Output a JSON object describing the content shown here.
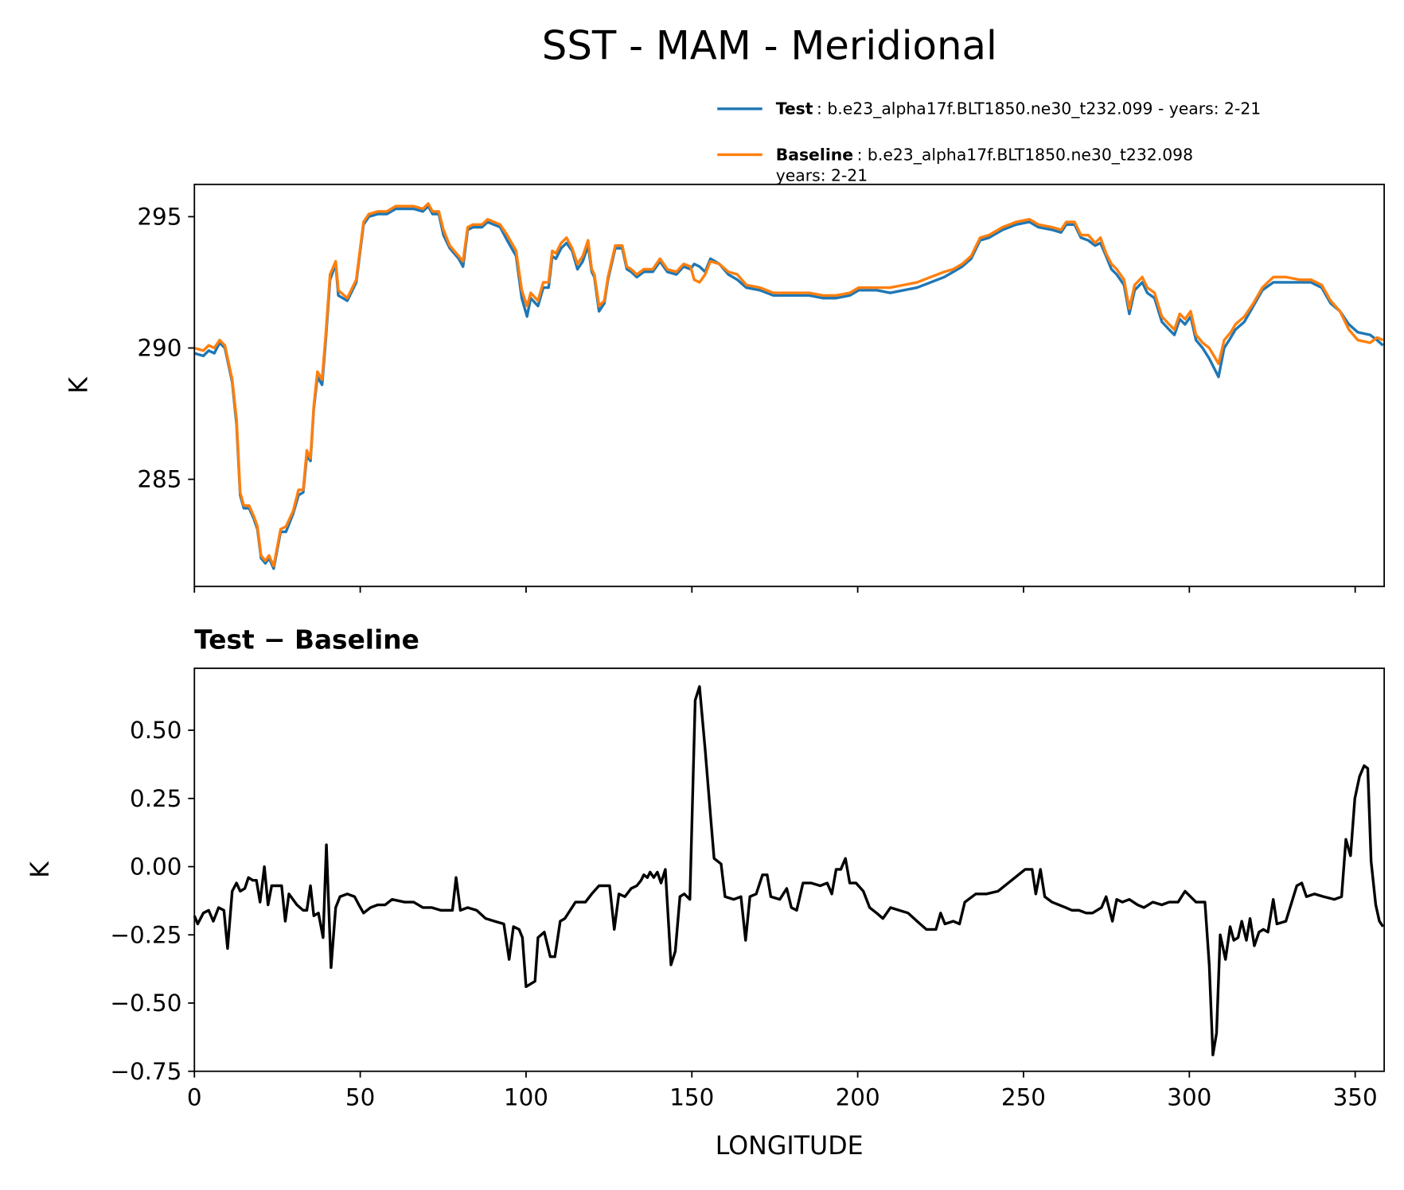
{
  "title": "SST - MAM - Meridional",
  "chart_data": [
    {
      "type": "line",
      "legend": "above",
      "ylabel": "K",
      "xlim": [
        0,
        358.75
      ],
      "ylim": [
        280.92,
        296.23
      ],
      "xticks": [
        0,
        50,
        100,
        150,
        200,
        250,
        300,
        350
      ],
      "yticks": [
        285,
        290,
        295
      ],
      "x": [
        0,
        2.7,
        4.3,
        6,
        7.6,
        9.2,
        11.4,
        12.7,
        13.8,
        14.9,
        16.5,
        17.9,
        19,
        20.1,
        21.4,
        22.5,
        23.9,
        26,
        27.6,
        29.8,
        31.4,
        32.8,
        33.9,
        35,
        36,
        37.1,
        38.5,
        39.6,
        40.9,
        42.6,
        43.4,
        46.1,
        48.8,
        51,
        52.6,
        55.3,
        58,
        60.7,
        66.1,
        68.9,
        70.5,
        71.8,
        73.7,
        75.1,
        77,
        79.7,
        81,
        82.4,
        84,
        86.7,
        88.4,
        92.2,
        94.3,
        97,
        98.7,
        100.3,
        101.4,
        103.6,
        105.2,
        106.8,
        107.9,
        109,
        110.6,
        112.2,
        113.9,
        115.5,
        117.1,
        118.7,
        119.8,
        120.6,
        122,
        123.6,
        124.7,
        126.9,
        129,
        130.4,
        131.7,
        133.4,
        135.5,
        138.2,
        140.4,
        142.6,
        145.3,
        147.5,
        149.6,
        150.7,
        152.3,
        154,
        155.6,
        158.3,
        161,
        163.7,
        166.4,
        170.5,
        174.6,
        180,
        185.4,
        189.5,
        193.5,
        197.6,
        200.3,
        203,
        205.7,
        209.8,
        213.9,
        217.9,
        222,
        226.1,
        228.8,
        231.5,
        234.2,
        236.9,
        239.6,
        243.7,
        247.8,
        251.8,
        254.5,
        258.6,
        261.3,
        262.9,
        265.4,
        267.3,
        269.5,
        271.6,
        273.2,
        274.9,
        276.5,
        278.1,
        280.3,
        281.9,
        283.5,
        285.8,
        287.3,
        289.5,
        291.7,
        293.9,
        295.5,
        297.1,
        298.7,
        300.4,
        302,
        304,
        306,
        308.8,
        310.5,
        312.5,
        313.9,
        316.6,
        319.3,
        322,
        325.3,
        329.1,
        333.2,
        336.7,
        339.9,
        342.6,
        345.4,
        348.1,
        350.8,
        354.5,
        356.6,
        358.4
      ],
      "series": [
        {
          "name": "Test",
          "description": [
            ": b.e23_alpha17f.BLT1850.ne30_t232.099 - years: 2-21"
          ],
          "color": "#1f77b4",
          "values": [
            289.8,
            289.7,
            289.9,
            289.8,
            290.2,
            290.0,
            288.7,
            287.1,
            284.4,
            283.9,
            283.9,
            283.5,
            283.1,
            282.0,
            281.8,
            282.0,
            281.6,
            283.0,
            283.0,
            283.7,
            284.4,
            284.5,
            285.9,
            285.7,
            287.7,
            288.9,
            288.6,
            290.3,
            292.6,
            293.2,
            292.0,
            291.8,
            292.5,
            294.7,
            295.0,
            295.1,
            295.1,
            295.3,
            295.3,
            295.2,
            295.4,
            295.1,
            295.1,
            294.3,
            293.8,
            293.4,
            293.1,
            294.5,
            294.6,
            294.6,
            294.8,
            294.6,
            294.1,
            293.5,
            291.9,
            291.2,
            291.9,
            291.6,
            292.3,
            292.3,
            293.5,
            293.4,
            293.8,
            294.0,
            293.7,
            293.0,
            293.3,
            293.9,
            292.9,
            292.7,
            291.4,
            291.7,
            292.6,
            293.8,
            293.8,
            293.0,
            292.9,
            292.7,
            292.9,
            292.9,
            293.3,
            292.9,
            292.8,
            293.1,
            293.0,
            293.2,
            293.1,
            292.9,
            293.4,
            293.2,
            292.8,
            292.6,
            292.3,
            292.2,
            292.0,
            292.0,
            292.0,
            291.9,
            291.9,
            292.0,
            292.2,
            292.2,
            292.2,
            292.1,
            292.2,
            292.3,
            292.5,
            292.7,
            292.9,
            293.1,
            293.4,
            294.1,
            294.2,
            294.5,
            294.7,
            294.8,
            294.6,
            294.5,
            294.4,
            294.7,
            294.7,
            294.2,
            294.1,
            293.9,
            294.0,
            293.5,
            293.0,
            292.8,
            292.4,
            291.3,
            292.2,
            292.5,
            292.1,
            291.9,
            291.0,
            290.7,
            290.5,
            291.1,
            290.9,
            291.2,
            290.3,
            290.0,
            289.6,
            288.9,
            290.0,
            290.4,
            290.7,
            291.0,
            291.6,
            292.2,
            292.5,
            292.5,
            292.5,
            292.5,
            292.3,
            291.7,
            291.4,
            290.9,
            290.6,
            290.5,
            290.3,
            290.1
          ]
        },
        {
          "name": "Baseline",
          "description": [
            ": b.e23_alpha17f.BLT1850.ne30_t232.098",
            "years: 2-21"
          ],
          "color": "#ff7f0e",
          "values": [
            290.0,
            289.9,
            290.1,
            290.0,
            290.3,
            290.1,
            288.8,
            287.3,
            284.5,
            284.0,
            284.0,
            283.6,
            283.2,
            282.1,
            281.9,
            282.1,
            281.7,
            283.1,
            283.2,
            283.8,
            284.6,
            284.6,
            286.1,
            285.8,
            287.8,
            289.1,
            288.8,
            290.5,
            292.8,
            293.3,
            292.2,
            291.9,
            292.6,
            294.8,
            295.1,
            295.2,
            295.2,
            295.4,
            295.4,
            295.3,
            295.5,
            295.2,
            295.2,
            294.5,
            293.9,
            293.5,
            293.3,
            294.6,
            294.7,
            294.7,
            294.9,
            294.7,
            294.3,
            293.7,
            292.2,
            291.6,
            292.1,
            291.8,
            292.5,
            292.5,
            293.7,
            293.6,
            294.0,
            294.2,
            293.8,
            293.2,
            293.5,
            294.1,
            293.0,
            292.8,
            291.6,
            291.8,
            292.7,
            293.9,
            293.9,
            293.1,
            293.0,
            292.8,
            293.0,
            293.0,
            293.4,
            293.0,
            292.9,
            293.2,
            293.1,
            292.6,
            292.5,
            292.8,
            293.3,
            293.2,
            292.9,
            292.8,
            292.4,
            292.3,
            292.1,
            292.1,
            292.1,
            292.0,
            292.0,
            292.1,
            292.3,
            292.3,
            292.3,
            292.3,
            292.4,
            292.5,
            292.7,
            292.9,
            293.0,
            293.2,
            293.5,
            294.2,
            294.3,
            294.6,
            294.8,
            294.9,
            294.7,
            294.6,
            294.5,
            294.8,
            294.8,
            294.3,
            294.3,
            294.0,
            294.2,
            293.6,
            293.2,
            293.0,
            292.6,
            291.5,
            292.4,
            292.7,
            292.3,
            292.1,
            291.2,
            290.9,
            290.7,
            291.3,
            291.1,
            291.4,
            290.5,
            290.2,
            290.0,
            289.4,
            290.3,
            290.6,
            290.9,
            291.2,
            291.7,
            292.3,
            292.7,
            292.7,
            292.6,
            292.6,
            292.4,
            291.8,
            291.4,
            290.7,
            290.3,
            290.2,
            290.4,
            290.3
          ]
        }
      ]
    },
    {
      "type": "line",
      "title": "Test − Baseline",
      "xlabel": "LONGITUDE",
      "ylabel": "K",
      "color": "#000000",
      "xlim": [
        0,
        358.75
      ],
      "ylim": [
        -0.75,
        0.727
      ],
      "xticks": [
        0,
        50,
        100,
        150,
        200,
        250,
        300,
        350
      ],
      "yticks": [
        {
          "value": -0.75,
          "label": "−0.75"
        },
        {
          "value": -0.5,
          "label": "−0.50"
        },
        {
          "value": -0.25,
          "label": "−0.25"
        },
        {
          "value": 0,
          "label": "0.00"
        },
        0.25,
        {
          "value": 0.5,
          "label": "0.50"
        }
      ],
      "x": [
        0,
        1,
        2.7,
        4.3,
        5.7,
        7.3,
        8.9,
        10,
        11.4,
        12.7,
        13.8,
        15.2,
        16.3,
        17.6,
        18.7,
        19.8,
        21.1,
        22.2,
        23.3,
        26.3,
        27.4,
        28.5,
        30.9,
        32.8,
        33.9,
        35,
        36,
        37.4,
        38.8,
        39.8,
        41.2,
        42.6,
        43.9,
        46.1,
        48.3,
        49.6,
        51,
        53.1,
        55.3,
        57.5,
        59.6,
        63.4,
        66.1,
        68.9,
        71.6,
        74.3,
        77,
        77.8,
        78.9,
        80.2,
        82.4,
        85.1,
        87.8,
        90.5,
        93.3,
        94.9,
        96.2,
        97.9,
        98.9,
        100,
        102.7,
        103.6,
        105.5,
        107.3,
        108.7,
        110.3,
        111.7,
        113.3,
        114.9,
        117.9,
        119.8,
        122,
        125.2,
        126.6,
        128,
        129.8,
        131.7,
        133.4,
        134.7,
        135.5,
        136.6,
        137.4,
        138.5,
        139.6,
        140.7,
        142,
        143.7,
        145,
        146.4,
        147.7,
        149.4,
        151,
        152.3,
        154,
        155.6,
        156.7,
        158.8,
        160,
        162.6,
        164.8,
        166.2,
        167.5,
        169.4,
        171.3,
        172.7,
        173.8,
        176.5,
        178.6,
        180,
        181.6,
        183.5,
        186,
        188.7,
        190.8,
        192.2,
        193.5,
        194.9,
        196.3,
        197.6,
        199.5,
        201.7,
        203.6,
        205.7,
        207.6,
        209.9,
        212.5,
        215.2,
        217.9,
        220.7,
        223.6,
        225,
        226.3,
        228.8,
        230.7,
        232.3,
        235.6,
        238.8,
        242.3,
        246.4,
        250.5,
        252.6,
        253.7,
        255.1,
        256.4,
        258.6,
        262.7,
        264.6,
        266.7,
        268.9,
        270.8,
        273.5,
        274.9,
        276.8,
        278.1,
        279.8,
        281.9,
        284.4,
        286.3,
        289,
        291.7,
        293.9,
        296.6,
        298.7,
        302,
        304.7,
        306,
        307.1,
        308.2,
        309.3,
        310.9,
        312.3,
        313.4,
        314.7,
        315.8,
        317.2,
        318.3,
        319.6,
        321,
        322.3,
        323.7,
        325.3,
        326.4,
        329.1,
        332.4,
        333.9,
        335.3,
        337.7,
        340.5,
        343.7,
        345.9,
        347.2,
        348.6,
        349.9,
        351.3,
        352.7,
        353.8,
        354.8,
        356.2,
        357.3,
        358.4
      ],
      "values": [
        -0.18,
        -0.21,
        -0.17,
        -0.16,
        -0.2,
        -0.15,
        -0.16,
        -0.3,
        -0.09,
        -0.06,
        -0.09,
        -0.08,
        -0.04,
        -0.05,
        -0.05,
        -0.13,
        0,
        -0.14,
        -0.07,
        -0.07,
        -0.2,
        -0.1,
        -0.14,
        -0.16,
        -0.16,
        -0.07,
        -0.18,
        -0.17,
        -0.26,
        0.08,
        -0.37,
        -0.15,
        -0.11,
        -0.1,
        -0.11,
        -0.14,
        -0.17,
        -0.15,
        -0.14,
        -0.14,
        -0.12,
        -0.13,
        -0.13,
        -0.15,
        -0.15,
        -0.16,
        -0.16,
        -0.16,
        -0.04,
        -0.16,
        -0.15,
        -0.16,
        -0.19,
        -0.2,
        -0.21,
        -0.34,
        -0.22,
        -0.23,
        -0.26,
        -0.44,
        -0.42,
        -0.26,
        -0.24,
        -0.33,
        -0.33,
        -0.2,
        -0.19,
        -0.16,
        -0.13,
        -0.13,
        -0.1,
        -0.07,
        -0.07,
        -0.23,
        -0.1,
        -0.11,
        -0.08,
        -0.07,
        -0.05,
        -0.03,
        -0.04,
        -0.02,
        -0.04,
        -0.02,
        -0.06,
        -0.01,
        -0.36,
        -0.31,
        -0.11,
        -0.1,
        -0.12,
        0.61,
        0.66,
        0.43,
        0.19,
        0.03,
        0.01,
        -0.11,
        -0.12,
        -0.11,
        -0.27,
        -0.11,
        -0.1,
        -0.03,
        -0.03,
        -0.11,
        -0.12,
        -0.08,
        -0.15,
        -0.16,
        -0.06,
        -0.06,
        -0.07,
        -0.06,
        -0.1,
        -0.01,
        -0.01,
        0.03,
        -0.06,
        -0.06,
        -0.09,
        -0.15,
        -0.17,
        -0.19,
        -0.15,
        -0.16,
        -0.17,
        -0.2,
        -0.23,
        -0.23,
        -0.17,
        -0.21,
        -0.2,
        -0.21,
        -0.13,
        -0.1,
        -0.1,
        -0.09,
        -0.05,
        -0.01,
        -0.01,
        -0.1,
        -0.01,
        -0.11,
        -0.13,
        -0.15,
        -0.16,
        -0.16,
        -0.17,
        -0.17,
        -0.15,
        -0.11,
        -0.2,
        -0.12,
        -0.13,
        -0.12,
        -0.14,
        -0.15,
        -0.13,
        -0.14,
        -0.13,
        -0.13,
        -0.09,
        -0.13,
        -0.13,
        -0.36,
        -0.69,
        -0.61,
        -0.25,
        -0.34,
        -0.22,
        -0.27,
        -0.26,
        -0.2,
        -0.27,
        -0.19,
        -0.29,
        -0.24,
        -0.23,
        -0.24,
        -0.12,
        -0.21,
        -0.2,
        -0.07,
        -0.06,
        -0.11,
        -0.1,
        -0.11,
        -0.12,
        -0.11,
        0.1,
        0.04,
        0.25,
        0.33,
        0.37,
        0.36,
        0.02,
        -0.14,
        -0.2,
        -0.22
      ]
    }
  ]
}
